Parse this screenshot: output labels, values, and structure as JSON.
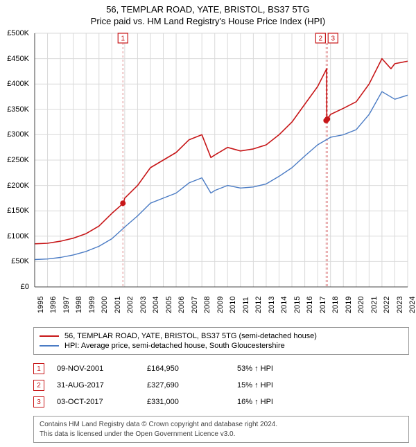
{
  "title": {
    "main": "56, TEMPLAR ROAD, YATE, BRISTOL, BS37 5TG",
    "sub": "Price paid vs. HM Land Registry's House Price Index (HPI)"
  },
  "chart": {
    "type": "line",
    "background": "#ffffff",
    "grid_color": "#d9d9d9",
    "axis_color": "#444444",
    "ylim": [
      0,
      500
    ],
    "ytick_step": 50,
    "y_unit_prefix": "£",
    "y_unit_suffix": "K",
    "x_years": [
      1995,
      1996,
      1997,
      1998,
      1999,
      2000,
      2001,
      2002,
      2003,
      2004,
      2005,
      2006,
      2007,
      2008,
      2009,
      2010,
      2011,
      2012,
      2013,
      2014,
      2015,
      2016,
      2017,
      2018,
      2019,
      2020,
      2021,
      2022,
      2023,
      2024
    ],
    "series": [
      {
        "name": "price_paid",
        "label": "56, TEMPLAR ROAD, YATE, BRISTOL, BS37 5TG (semi-detached house)",
        "color": "#c71618",
        "width": 1.6,
        "values_by_year_k": {
          "1995": 85,
          "1996": 86,
          "1997": 90,
          "1998": 96,
          "1999": 105,
          "2000": 120,
          "2001": 145,
          "2001.9": 165,
          "2002": 175,
          "2003": 200,
          "2004": 235,
          "2005": 250,
          "2006": 265,
          "2007": 290,
          "2008": 300,
          "2008.7": 255,
          "2009": 260,
          "2010": 275,
          "2011": 268,
          "2012": 272,
          "2013": 280,
          "2014": 300,
          "2015": 325,
          "2016": 360,
          "2017": 395,
          "2017.7": 430,
          "2017.71": 328,
          "2018": 340,
          "2019": 352,
          "2020": 365,
          "2021": 400,
          "2022": 450,
          "2022.7": 430,
          "2023": 440,
          "2024": 445
        }
      },
      {
        "name": "hpi",
        "label": "HPI: Average price, semi-detached house, South Gloucestershire",
        "color": "#4a7bc4",
        "width": 1.4,
        "values_by_year_k": {
          "1995": 54,
          "1996": 55,
          "1997": 58,
          "1998": 63,
          "1999": 70,
          "2000": 80,
          "2001": 95,
          "2002": 118,
          "2003": 140,
          "2004": 165,
          "2005": 175,
          "2006": 185,
          "2007": 205,
          "2008": 215,
          "2008.7": 185,
          "2009": 190,
          "2010": 200,
          "2011": 195,
          "2012": 197,
          "2013": 203,
          "2014": 218,
          "2015": 235,
          "2016": 258,
          "2017": 280,
          "2018": 295,
          "2019": 300,
          "2020": 310,
          "2021": 340,
          "2022": 385,
          "2023": 370,
          "2024": 378
        }
      }
    ],
    "sale_markers": [
      {
        "n": "1",
        "year": 2001.86,
        "price_k": 165,
        "color": "#c71618",
        "dash_color": "#e39a9b"
      },
      {
        "n": "2",
        "year": 2017.66,
        "price_k": 328,
        "color": "#c71618",
        "dash_color": "#e39a9b"
      },
      {
        "n": "3",
        "year": 2017.76,
        "price_k": 331,
        "color": "#c71618",
        "dash_color": "#e39a9b"
      }
    ],
    "marker_box_size": 14,
    "marker_dot_radius": 4
  },
  "legend": {
    "rows": [
      {
        "color": "#c71618",
        "text": "56, TEMPLAR ROAD, YATE, BRISTOL, BS37 5TG (semi-detached house)"
      },
      {
        "color": "#4a7bc4",
        "text": "HPI: Average price, semi-detached house, South Gloucestershire"
      }
    ]
  },
  "sales": [
    {
      "n": "1",
      "color": "#c71618",
      "date": "09-NOV-2001",
      "price": "£164,950",
      "hpi": "53% ↑ HPI"
    },
    {
      "n": "2",
      "color": "#c71618",
      "date": "31-AUG-2017",
      "price": "£327,690",
      "hpi": "15% ↑ HPI"
    },
    {
      "n": "3",
      "color": "#c71618",
      "date": "03-OCT-2017",
      "price": "£331,000",
      "hpi": "16% ↑ HPI"
    }
  ],
  "footer": {
    "line1": "Contains HM Land Registry data © Crown copyright and database right 2024.",
    "line2": "This data is licensed under the Open Government Licence v3.0."
  }
}
